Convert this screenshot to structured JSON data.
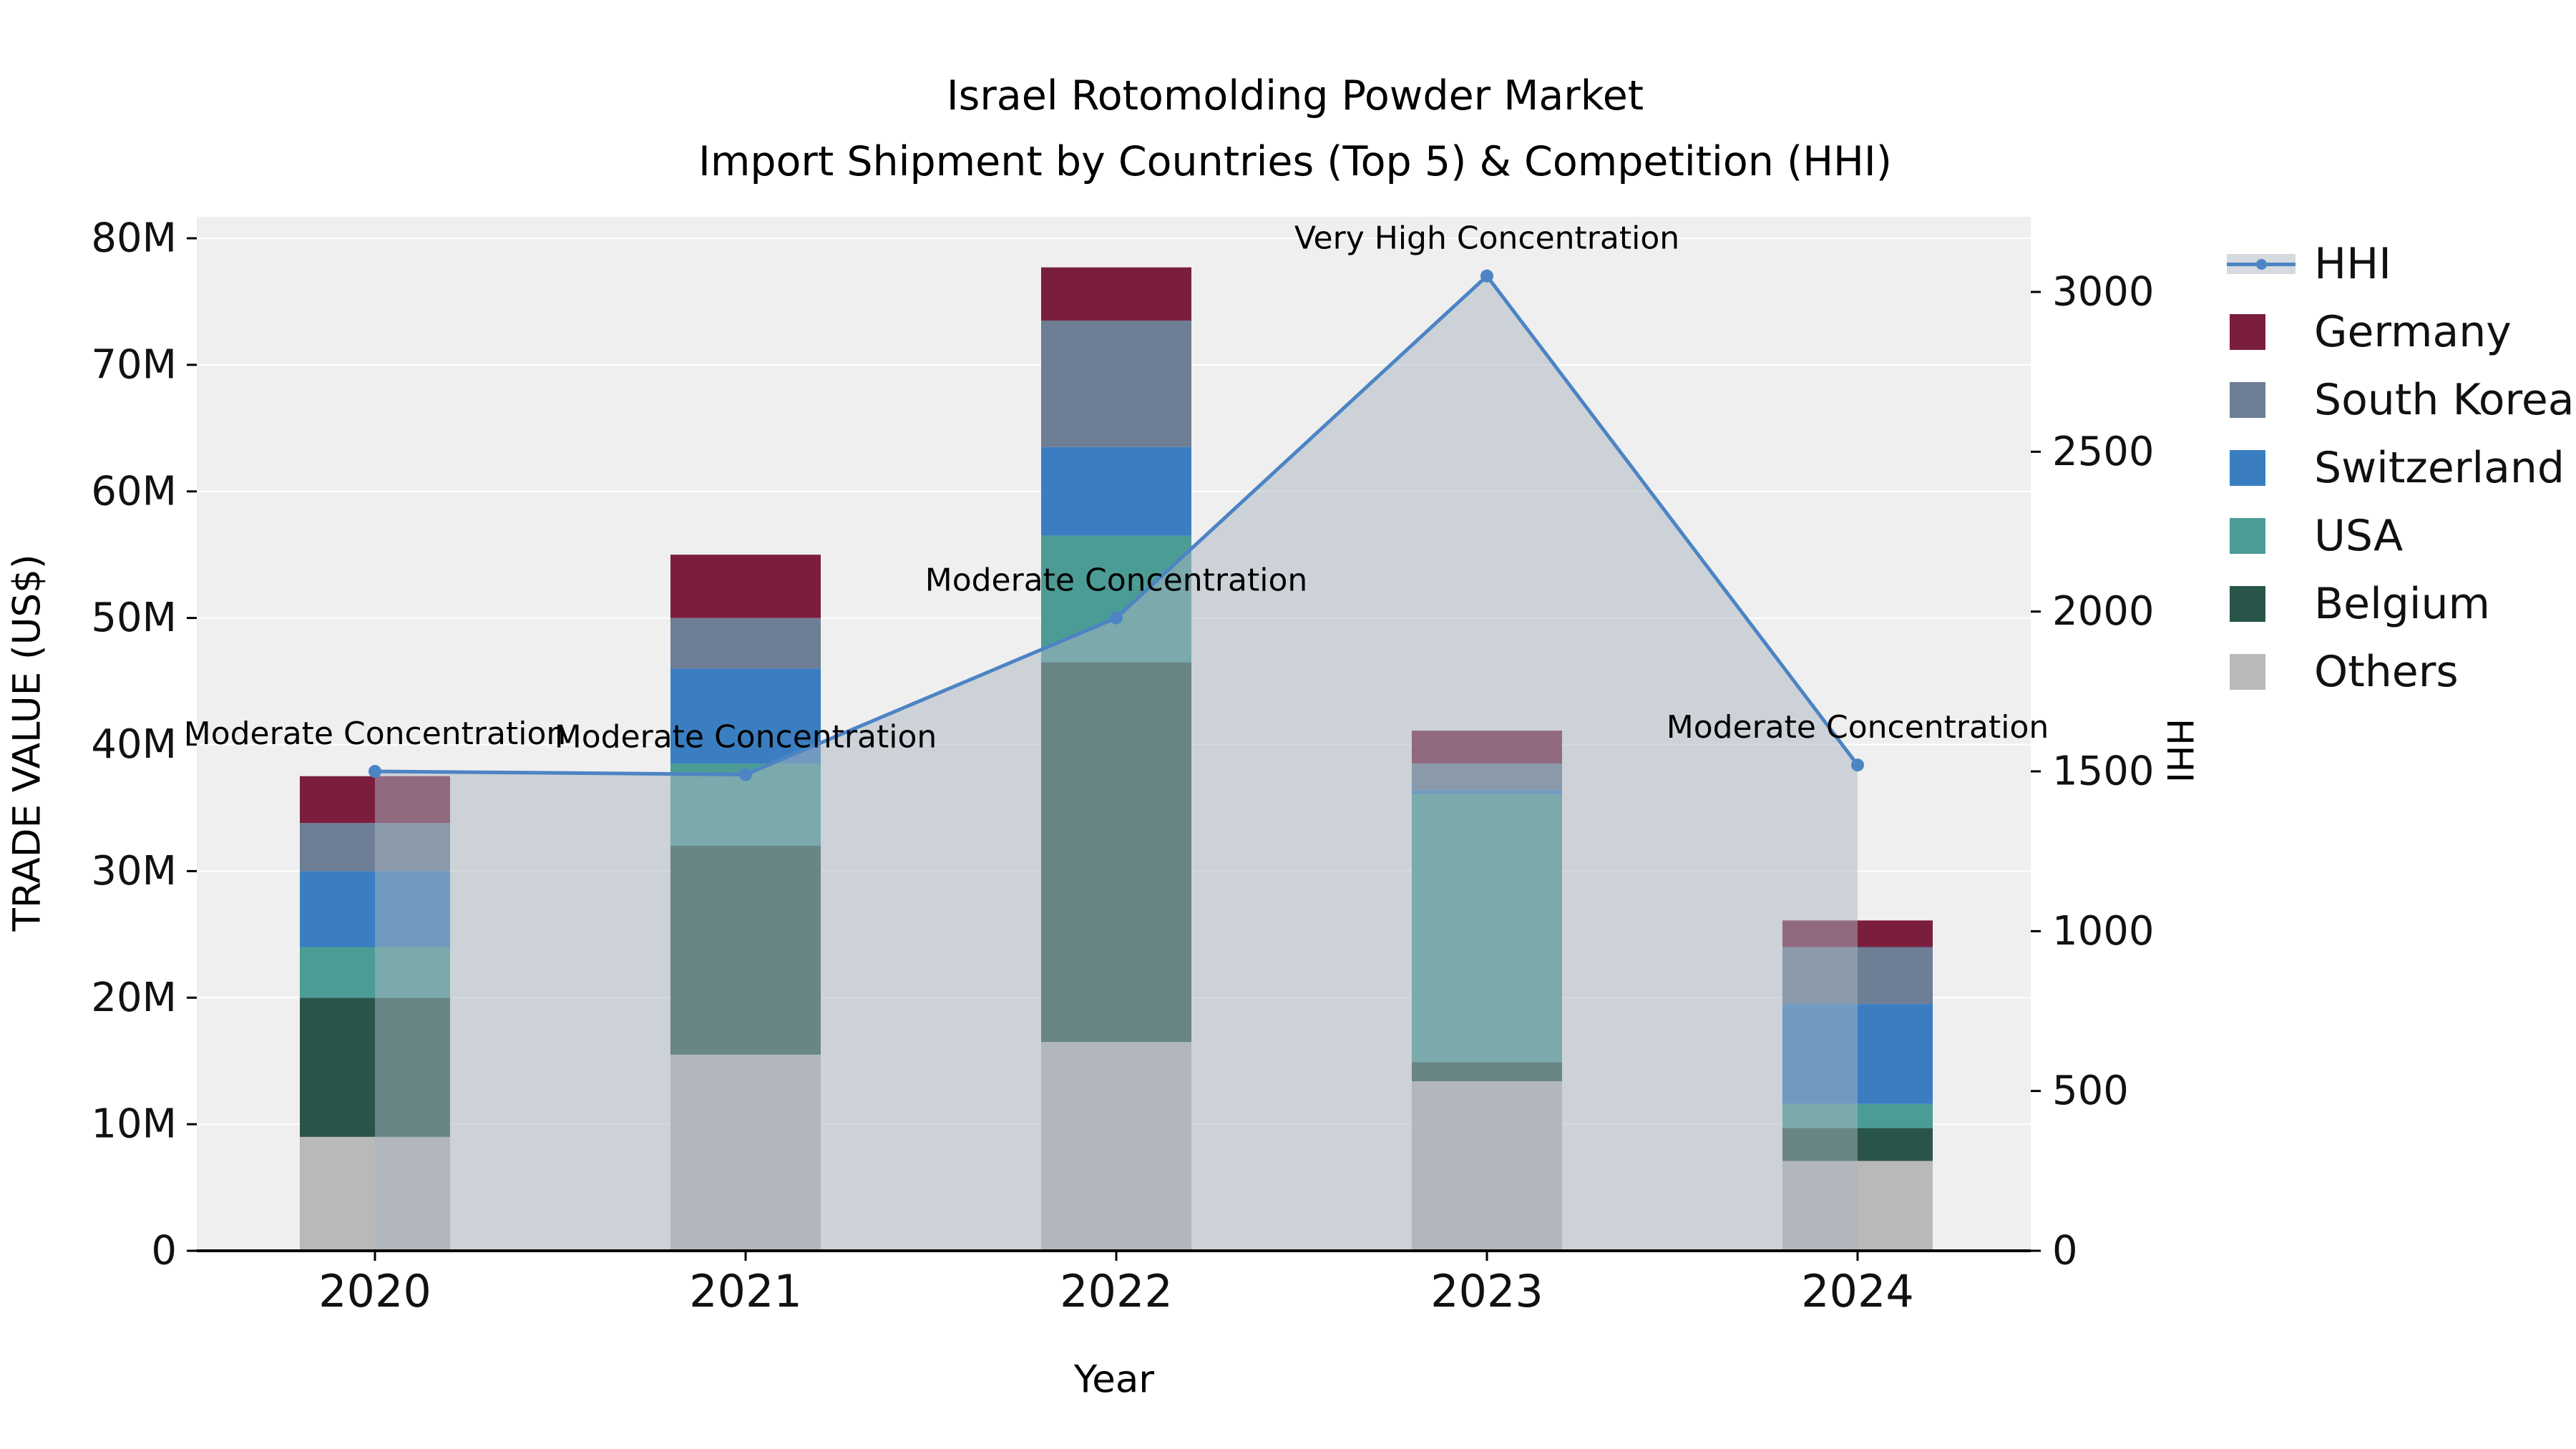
{
  "chart_data": {
    "type": "bar",
    "title_line1": "Israel Rotomolding Powder Market",
    "title_line2": "Import Shipment by Countries (Top 5) & Competition (HHI)",
    "xlabel": "Year",
    "ylabel_left": "TRADE VALUE (US$)",
    "ylabel_right": "HHI",
    "values_unit": "USD millions",
    "categories": [
      "2020",
      "2021",
      "2022",
      "2023",
      "2024"
    ],
    "series": [
      {
        "name": "Others",
        "color": "#b9b9b9",
        "values": [
          9.0,
          15.5,
          16.5,
          13.4,
          7.1
        ]
      },
      {
        "name": "Belgium",
        "color": "#295449",
        "values": [
          11.0,
          16.5,
          30.0,
          1.5,
          2.6
        ]
      },
      {
        "name": "USA",
        "color": "#4c9c96",
        "values": [
          4.0,
          6.5,
          10.0,
          21.2,
          1.9
        ]
      },
      {
        "name": "Switzerland",
        "color": "#3a7ec1",
        "values": [
          6.0,
          7.5,
          7.0,
          0.3,
          7.9
        ]
      },
      {
        "name": "South Korea",
        "color": "#6d7e95",
        "values": [
          3.8,
          4.0,
          10.0,
          2.1,
          4.5
        ]
      },
      {
        "name": "Germany",
        "color": "#7b1e3e",
        "values": [
          3.7,
          5.0,
          4.2,
          2.6,
          2.1
        ]
      }
    ],
    "totals": [
      37.5,
      55.0,
      77.7,
      41.1,
      26.1
    ],
    "y_left": {
      "min": 0,
      "max": 80,
      "ticks": [
        "0",
        "10M",
        "20M",
        "30M",
        "40M",
        "50M",
        "60M",
        "70M",
        "80M"
      ],
      "tick_values": [
        0,
        10,
        20,
        30,
        40,
        50,
        60,
        70,
        80
      ]
    },
    "y_right": {
      "min": 0,
      "max": 3000,
      "ticks": [
        "0",
        "500",
        "1000",
        "1500",
        "2000",
        "2500",
        "3000"
      ],
      "tick_values": [
        0,
        500,
        1000,
        1500,
        2000,
        2500,
        3000
      ]
    },
    "hhi": {
      "name": "HHI",
      "color": "#4c84c4",
      "fill_color": "rgba(169,181,194,0.5)",
      "values": [
        1500,
        1490,
        1980,
        3050,
        1520
      ],
      "annotations": [
        "Moderate Concentration",
        "Moderate Concentration",
        "Moderate Concentration",
        "Very High Concentration",
        "Moderate Concentration"
      ]
    },
    "legend": [
      {
        "label": "HHI",
        "type": "line",
        "color": "#4c84c4"
      },
      {
        "label": "Germany",
        "type": "swatch",
        "color": "#7b1e3e"
      },
      {
        "label": "South Korea",
        "type": "swatch",
        "color": "#6d7e95"
      },
      {
        "label": "Switzerland",
        "type": "swatch",
        "color": "#3a7ec1"
      },
      {
        "label": "USA",
        "type": "swatch",
        "color": "#4c9c96"
      },
      {
        "label": "Belgium",
        "type": "swatch",
        "color": "#295449"
      },
      {
        "label": "Others",
        "type": "swatch",
        "color": "#b9b9b9"
      }
    ],
    "plot_bg": "#efefef",
    "grid": true,
    "legend_position": "right-outside"
  }
}
